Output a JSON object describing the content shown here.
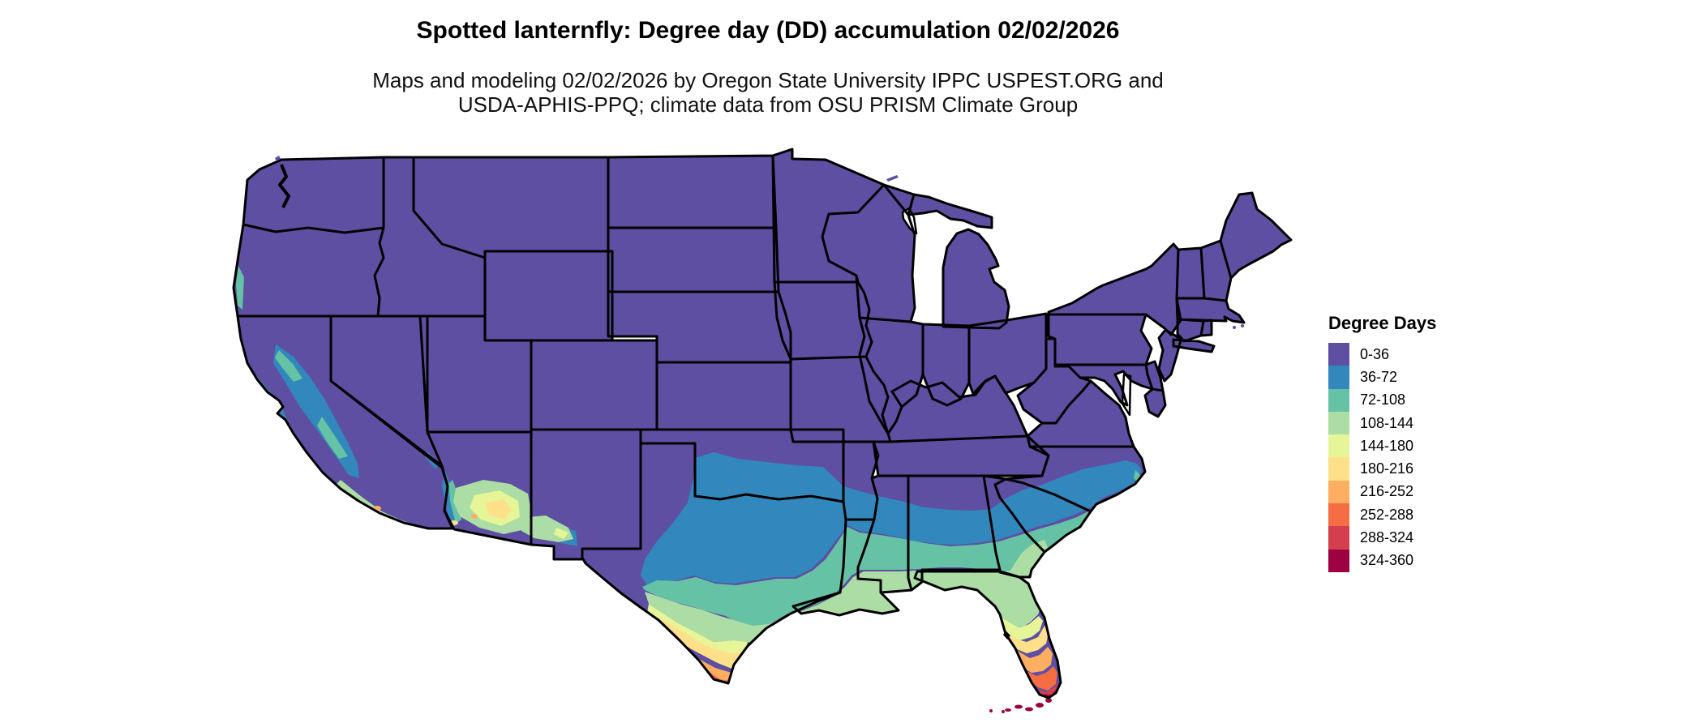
{
  "title": "Spotted lanternfly: Degree day (DD) accumulation 02/02/2026",
  "subtitle_line1": "Maps and modeling 02/02/2026 by Oregon State University IPPC USPEST.ORG and",
  "subtitle_line2": "USDA-APHIS-PPQ; climate data from OSU PRISM Climate Group",
  "map": {
    "region": "Contiguous United States",
    "background_color": "#ffffff",
    "border_color": "#000000"
  },
  "legend": {
    "title": "Degree Days",
    "items": [
      {
        "label": "0-36",
        "color": "#5e4fa2"
      },
      {
        "label": "36-72",
        "color": "#3288bd"
      },
      {
        "label": "72-108",
        "color": "#66c2a5"
      },
      {
        "label": "108-144",
        "color": "#abdda4"
      },
      {
        "label": "144-180",
        "color": "#e6f598"
      },
      {
        "label": "180-216",
        "color": "#fee08b"
      },
      {
        "label": "216-252",
        "color": "#fdae61"
      },
      {
        "label": "252-288",
        "color": "#f46d43"
      },
      {
        "label": "288-324",
        "color": "#d53e4f"
      },
      {
        "label": "324-360",
        "color": "#9e0142"
      }
    ]
  }
}
